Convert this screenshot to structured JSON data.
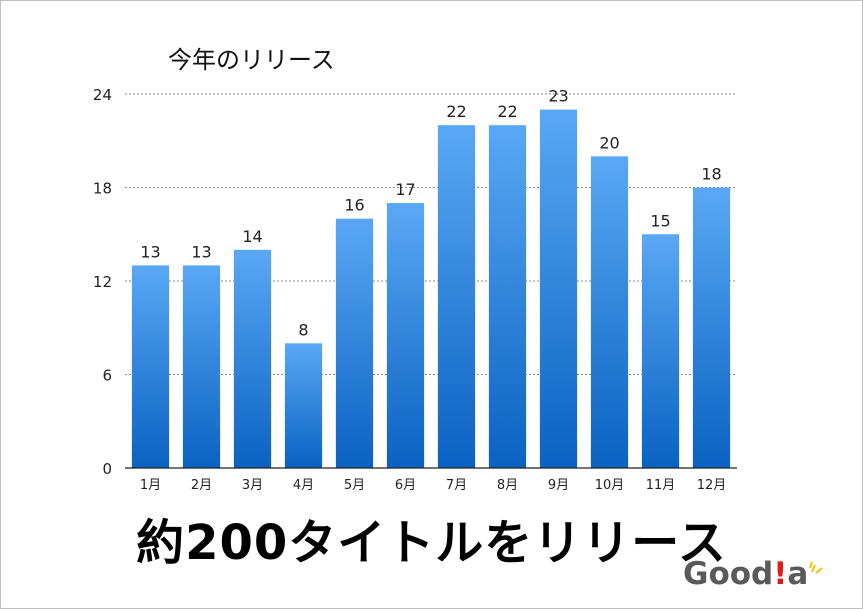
{
  "chart_data": {
    "type": "bar",
    "title": "今年のリリース",
    "categories": [
      "1月",
      "2月",
      "3月",
      "4月",
      "5月",
      "6月",
      "7月",
      "8月",
      "9月",
      "10月",
      "11月",
      "12月"
    ],
    "values": [
      13,
      13,
      14,
      8,
      16,
      17,
      22,
      22,
      23,
      20,
      15,
      18
    ],
    "ylim": [
      0,
      24
    ],
    "yticks": [
      0,
      6,
      12,
      18,
      24
    ],
    "grid": true,
    "data_labels": true,
    "bar_color_top": "#5aa8f5",
    "bar_color_bottom": "#0a62c2"
  },
  "headline": "約200タイトルをリリース",
  "logo": {
    "text_before": "Good",
    "accent": "!",
    "text_after": "a",
    "accent_color": "#e31b1b",
    "spark_color": "#f2c200"
  }
}
